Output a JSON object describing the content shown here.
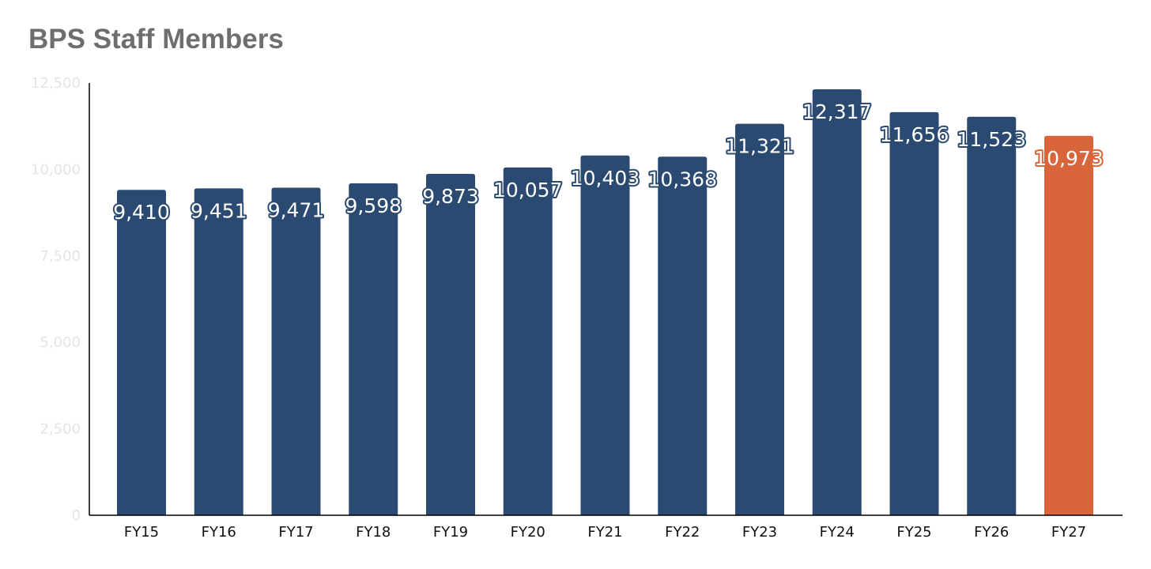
{
  "chart_data": {
    "type": "bar",
    "title": "BPS Staff Members",
    "categories": [
      "FY15",
      "FY16",
      "FY17",
      "FY18",
      "FY19",
      "FY20",
      "FY21",
      "FY22",
      "FY23",
      "FY24",
      "FY25",
      "FY26",
      "FY27"
    ],
    "values": [
      9410,
      9451,
      9471,
      9598,
      9873,
      10057,
      10403,
      10368,
      11321,
      12317,
      11656,
      11523,
      10973
    ],
    "value_labels": [
      "9,410",
      "9,451",
      "9,471",
      "9,598",
      "9,873",
      "10,057",
      "10,403",
      "10,368",
      "11,321",
      "12,317",
      "11,656",
      "11,523",
      "10,973"
    ],
    "ylim": [
      0,
      12500
    ],
    "yticks": [
      0,
      2500,
      5000,
      7500,
      10000,
      12500
    ],
    "ytick_labels": [
      "0",
      "2,500",
      "5,000",
      "7,500",
      "10,000",
      "12,500"
    ],
    "xlabel": "",
    "ylabel": "",
    "grid": false,
    "colors": {
      "default_bar": "#2b4a72",
      "highlight_bar": "#d9653b",
      "title": "#6e6e6e",
      "axis": "#000000"
    },
    "highlight_index": 12
  }
}
